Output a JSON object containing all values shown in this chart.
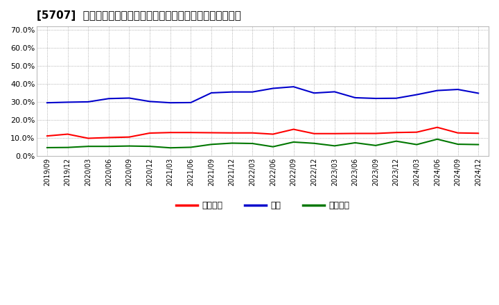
{
  "title": "[5707]  売上偉権、在庫、買入偉務の総資産に対する比率の推移",
  "x_labels": [
    "2019/09",
    "2019/12",
    "2020/03",
    "2020/06",
    "2020/09",
    "2020/12",
    "2021/03",
    "2021/06",
    "2021/09",
    "2021/12",
    "2022/03",
    "2022/06",
    "2022/09",
    "2022/12",
    "2023/03",
    "2023/06",
    "2023/09",
    "2023/12",
    "2024/03",
    "2024/06",
    "2024/09",
    "2024/12"
  ],
  "receivables": [
    0.11,
    0.12,
    0.097,
    0.101,
    0.104,
    0.126,
    0.129,
    0.129,
    0.128,
    0.127,
    0.127,
    0.12,
    0.147,
    0.123,
    0.123,
    0.124,
    0.124,
    0.129,
    0.131,
    0.158,
    0.127,
    0.125
  ],
  "inventory": [
    0.295,
    0.298,
    0.3,
    0.318,
    0.321,
    0.302,
    0.295,
    0.296,
    0.35,
    0.355,
    0.355,
    0.375,
    0.384,
    0.349,
    0.356,
    0.323,
    0.319,
    0.32,
    0.34,
    0.363,
    0.369,
    0.348
  ],
  "payables": [
    0.045,
    0.046,
    0.052,
    0.052,
    0.054,
    0.052,
    0.044,
    0.047,
    0.063,
    0.07,
    0.068,
    0.05,
    0.076,
    0.069,
    0.055,
    0.072,
    0.057,
    0.081,
    0.062,
    0.092,
    0.064,
    0.062
  ],
  "receivables_color": "#ff0000",
  "inventory_color": "#0000cc",
  "payables_color": "#007700",
  "legend_labels": [
    "売上偉権",
    "在庫",
    "買入偉務"
  ],
  "ylim": [
    0.0,
    0.72
  ],
  "yticks": [
    0.0,
    0.1,
    0.2,
    0.3,
    0.4,
    0.5,
    0.6,
    0.7
  ],
  "background_color": "#ffffff",
  "plot_bg_color": "#ffffff",
  "grid_color": "#999999",
  "title_fontsize": 11,
  "line_width": 1.5
}
